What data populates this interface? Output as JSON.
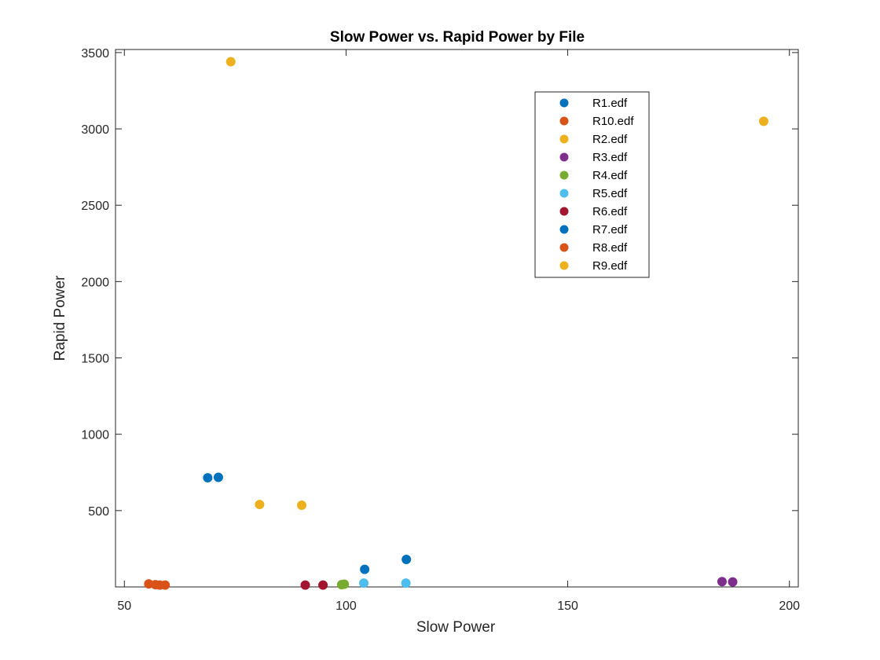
{
  "chart_data": {
    "type": "scatter",
    "title": "Slow Power vs. Rapid Power by File",
    "xlabel": "Slow Power",
    "ylabel": "Rapid Power",
    "xlim": [
      48,
      202
    ],
    "ylim": [
      0,
      3520
    ],
    "xticks": [
      50,
      100,
      150,
      200
    ],
    "yticks": [
      500,
      1000,
      1500,
      2000,
      2500,
      3000,
      3500
    ],
    "grid": false,
    "legend_position": "top-right",
    "series": [
      {
        "name": "R1.edf",
        "color": "#0072BD",
        "points": [
          [
            68.8,
            715
          ],
          [
            71.2,
            718
          ]
        ]
      },
      {
        "name": "R10.edf",
        "color": "#D95319",
        "points": [
          [
            55.5,
            20
          ],
          [
            57.0,
            15
          ]
        ]
      },
      {
        "name": "R2.edf",
        "color": "#EDB120",
        "points": [
          [
            80.5,
            540
          ],
          [
            90.0,
            535
          ]
        ]
      },
      {
        "name": "R3.edf",
        "color": "#7E2F8E",
        "points": [
          [
            184.8,
            35
          ],
          [
            187.2,
            33
          ]
        ]
      },
      {
        "name": "R4.edf",
        "color": "#77AC30",
        "points": [
          [
            99.0,
            15
          ],
          [
            99.6,
            18
          ]
        ]
      },
      {
        "name": "R5.edf",
        "color": "#4DBEEE",
        "points": [
          [
            104.0,
            25
          ],
          [
            113.5,
            25
          ]
        ]
      },
      {
        "name": "R6.edf",
        "color": "#A2142F",
        "points": [
          [
            90.8,
            12
          ],
          [
            94.8,
            12
          ]
        ]
      },
      {
        "name": "R7.edf",
        "color": "#0072BD",
        "points": [
          [
            104.2,
            115
          ],
          [
            113.6,
            180
          ]
        ]
      },
      {
        "name": "R8.edf",
        "color": "#D95319",
        "points": [
          [
            58.0,
            12
          ],
          [
            59.2,
            12
          ]
        ]
      },
      {
        "name": "R9.edf",
        "color": "#EDB120",
        "points": [
          [
            74.0,
            3440
          ],
          [
            194.2,
            3050
          ]
        ]
      }
    ]
  }
}
